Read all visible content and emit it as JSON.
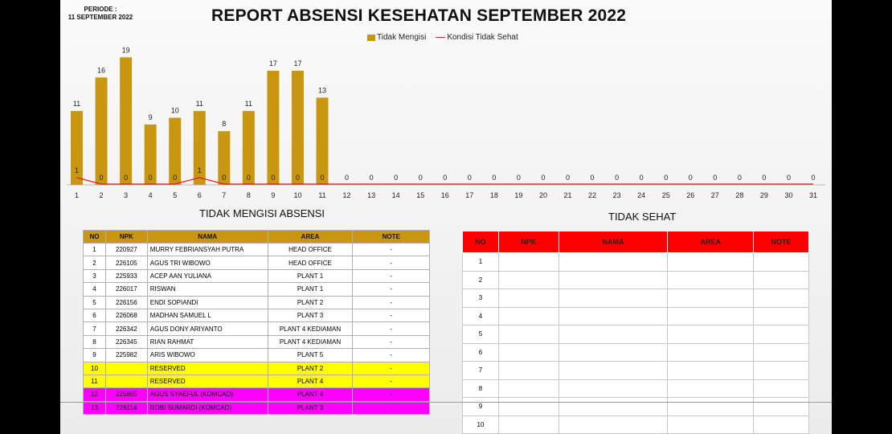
{
  "header": {
    "periode_label": "PERIODE :",
    "periode_date": "11 SEPTEMBER 2022",
    "title": "REPORT ABSENSI KESEHATAN SEPTEMBER 2022"
  },
  "legend": {
    "series1": "Tidak Mengisi",
    "series2": "Kondisi Tidak Sehat"
  },
  "colors": {
    "bar": "#c9960f",
    "line": "#e02020",
    "header_red": "#ff0000",
    "yellow": "#ffff00",
    "magenta": "#ff00ff"
  },
  "chart_data": {
    "type": "bar",
    "categories": [
      "1",
      "2",
      "3",
      "4",
      "5",
      "6",
      "7",
      "8",
      "9",
      "10",
      "11",
      "12",
      "13",
      "14",
      "15",
      "16",
      "17",
      "18",
      "19",
      "20",
      "21",
      "22",
      "23",
      "24",
      "25",
      "26",
      "27",
      "28",
      "29",
      "30",
      "31"
    ],
    "series": [
      {
        "name": "Tidak Mengisi",
        "type": "bar",
        "values": [
          11,
          16,
          19,
          9,
          10,
          11,
          8,
          11,
          17,
          17,
          13,
          0,
          0,
          0,
          0,
          0,
          0,
          0,
          0,
          0,
          0,
          0,
          0,
          0,
          0,
          0,
          0,
          0,
          0,
          0,
          0
        ]
      },
      {
        "name": "Kondisi Tidak Sehat",
        "type": "line",
        "values": [
          1,
          0,
          0,
          0,
          0,
          1,
          0,
          0,
          0,
          0,
          0,
          0,
          0,
          0,
          0,
          0,
          0,
          0,
          0,
          0,
          0,
          0,
          0,
          0,
          0,
          0,
          0,
          0,
          0,
          0,
          0
        ]
      }
    ],
    "ylim": [
      0,
      20
    ],
    "grid": false,
    "legend_position": "top"
  },
  "tidak_mengisi": {
    "title": "TIDAK MENGISI ABSENSI",
    "columns": [
      "NO",
      "NPK",
      "NAMA",
      "AREA",
      "NOTE"
    ],
    "rows": [
      {
        "no": "1",
        "npk": "220927",
        "nama": "MURRY FEBRIANSYAH PUTRA",
        "area": "HEAD OFFICE",
        "note": "-",
        "highlight": "white"
      },
      {
        "no": "2",
        "npk": "226105",
        "nama": "AGUS TRI WIBOWO",
        "area": "HEAD OFFICE",
        "note": "-",
        "highlight": "white"
      },
      {
        "no": "3",
        "npk": "225933",
        "nama": "ACEP AAN YULIANA",
        "area": "PLANT 1",
        "note": "-",
        "highlight": "white"
      },
      {
        "no": "4",
        "npk": "226017",
        "nama": "RISWAN",
        "area": "PLANT 1",
        "note": "-",
        "highlight": "white"
      },
      {
        "no": "5",
        "npk": "226156",
        "nama": "ENDI SOPIANDI",
        "area": "PLANT 2",
        "note": "-",
        "highlight": "white"
      },
      {
        "no": "6",
        "npk": "226068",
        "nama": "MADHAN SAMUEL L",
        "area": "PLANT 3",
        "note": "-",
        "highlight": "white"
      },
      {
        "no": "7",
        "npk": "226342",
        "nama": "AGUS DONY ARIYANTO",
        "area": "PLANT 4 KEDIAMAN",
        "note": "-",
        "highlight": "white"
      },
      {
        "no": "8",
        "npk": "226345",
        "nama": "RIAN RAHMAT",
        "area": "PLANT 4 KEDIAMAN",
        "note": "-",
        "highlight": "white"
      },
      {
        "no": "9",
        "npk": "225982",
        "nama": "ARIS WIBOWO",
        "area": "PLANT 5",
        "note": "-",
        "highlight": "white"
      },
      {
        "no": "10",
        "npk": "",
        "nama": "RESERVED",
        "area": "PLANT 2",
        "note": "-",
        "highlight": "yellow"
      },
      {
        "no": "11",
        "npk": "",
        "nama": "RESERVED",
        "area": "PLANT 4",
        "note": "-",
        "highlight": "yellow"
      },
      {
        "no": "12",
        "npk": "225865",
        "nama": "AGUS SYAEFUL (KOMCAD)",
        "area": "PLANT 4",
        "note": "-",
        "highlight": "magenta"
      },
      {
        "no": "13",
        "npk": "226114",
        "nama": "ROBI SUMARDI (KOMCAD)",
        "area": "PLANT 3",
        "note": "-",
        "highlight": "magenta"
      }
    ]
  },
  "tidak_sehat": {
    "title": "TIDAK SEHAT",
    "columns": [
      "NO",
      "NPK",
      "NAMA",
      "AREA",
      "NOTE"
    ],
    "rows": [
      {
        "no": "1"
      },
      {
        "no": "2"
      },
      {
        "no": "3"
      },
      {
        "no": "4"
      },
      {
        "no": "5"
      },
      {
        "no": "6"
      },
      {
        "no": "7"
      },
      {
        "no": "8"
      },
      {
        "no": "9"
      },
      {
        "no": "10"
      }
    ]
  }
}
